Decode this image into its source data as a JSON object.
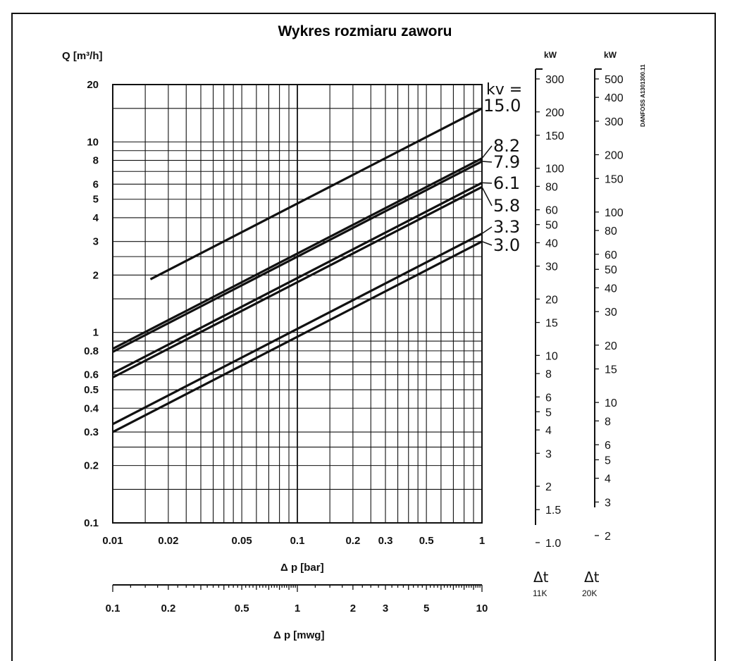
{
  "title": "Wykres rozmiaru zaworu",
  "y_axis_label": "Q [m³/h]",
  "x_axis_label": "Δ p [bar]",
  "x2_axis_label": "Δ p [mwg]",
  "kv_header": "kv =",
  "side_text": "DANFOSS A1301300.11",
  "kw_label_11k": "kW",
  "kw_label_20k": "kW",
  "delta_11k": "Δt",
  "delta_11k_sub": "11K",
  "delta_20k": "Δt",
  "delta_20k_sub": "20K",
  "y_tick_labels": [
    "20",
    "10",
    "8",
    "6",
    "5",
    "4",
    "3",
    "2",
    "1",
    "0.8",
    "0.6",
    "0.5",
    "0.4",
    "0.3",
    "0.2",
    "0.1"
  ],
  "x_tick_labels": [
    "0.01",
    "0.02",
    "0.05",
    "0.1",
    "0.2",
    "0.3",
    "0.5",
    "1"
  ],
  "x2_tick_labels": [
    "0.1",
    "0.2",
    "0.5",
    "1",
    "2",
    "3",
    "5",
    "10"
  ],
  "kw11_tick_labels": [
    "300",
    "200",
    "150",
    "100",
    "80",
    "60",
    "50",
    "40",
    "30",
    "20",
    "15",
    "10",
    "8",
    "6",
    "5",
    "4",
    "3",
    "2",
    "1.5",
    "1.0"
  ],
  "kw20_tick_labels": [
    "500",
    "400",
    "300",
    "200",
    "150",
    "100",
    "80",
    "60",
    "50",
    "40",
    "30",
    "20",
    "15",
    "10",
    "8",
    "6",
    "5",
    "4",
    "3",
    "2"
  ],
  "chart_data": {
    "type": "line",
    "title": "Wykres rozmiaru zaworu",
    "xlabel": "Δ p [bar]",
    "ylabel": "Q [m³/h]",
    "x_scale": "log",
    "y_scale": "log",
    "xlim": [
      0.01,
      1
    ],
    "ylim": [
      0.1,
      20
    ],
    "grid": true,
    "series": [
      {
        "name": "15.0",
        "x": [
          0.016,
          1
        ],
        "y": [
          1.9,
          15.0
        ]
      },
      {
        "name": "8.2",
        "x": [
          0.01,
          1
        ],
        "y": [
          0.82,
          8.2
        ]
      },
      {
        "name": "7.9",
        "x": [
          0.01,
          1
        ],
        "y": [
          0.79,
          7.9
        ]
      },
      {
        "name": "6.1",
        "x": [
          0.01,
          1
        ],
        "y": [
          0.61,
          6.1
        ]
      },
      {
        "name": "5.8",
        "x": [
          0.01,
          1
        ],
        "y": [
          0.58,
          5.8
        ]
      },
      {
        "name": "3.3",
        "x": [
          0.01,
          1
        ],
        "y": [
          0.33,
          3.3
        ]
      },
      {
        "name": "3.0",
        "x": [
          0.01,
          1
        ],
        "y": [
          0.3,
          3.0
        ]
      }
    ],
    "secondary_x_axis": {
      "label": "Δ p [mwg]",
      "range": [
        0.1,
        10
      ],
      "scale": "log"
    },
    "secondary_y_axes": [
      {
        "label": "kW",
        "condition": "Δt 11K",
        "range": [
          1.0,
          300
        ],
        "scale": "log"
      },
      {
        "label": "kW",
        "condition": "Δt 20K",
        "range": [
          2,
          500
        ],
        "scale": "log"
      }
    ]
  }
}
